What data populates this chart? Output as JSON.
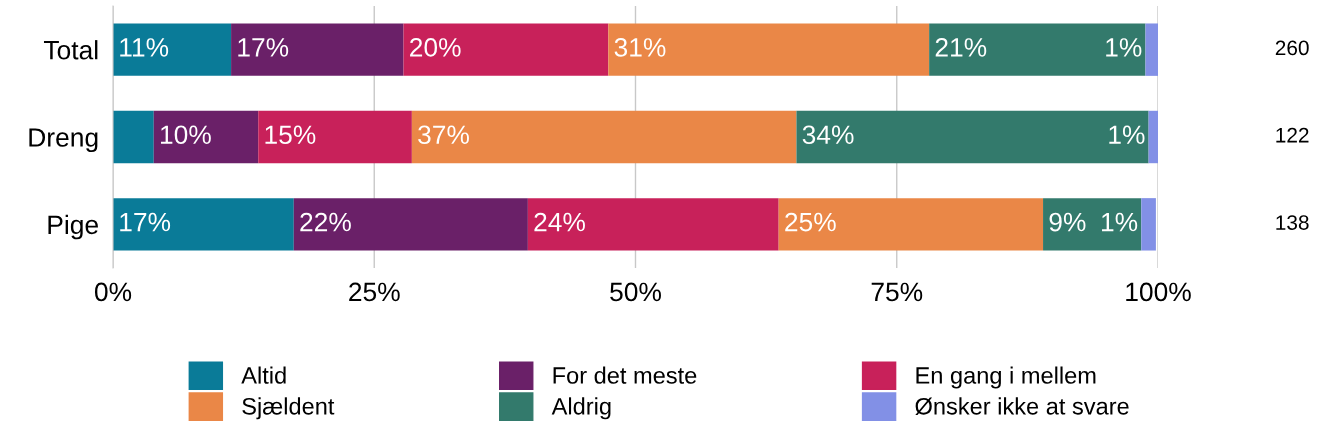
{
  "chart_data": {
    "type": "bar",
    "orientation": "horizontal",
    "stacked": true,
    "categories": [
      "Total",
      "Dreng",
      "Pige"
    ],
    "series": [
      {
        "name": "Altid",
        "color": "#0a7b98",
        "values": [
          11.3,
          3.9,
          17.3
        ],
        "value_labels": [
          "11%",
          null,
          "17%"
        ]
      },
      {
        "name": "For det meste",
        "color": "#6a2068",
        "values": [
          16.5,
          10.0,
          22.4
        ],
        "value_labels": [
          "17%",
          "10%",
          "22%"
        ]
      },
      {
        "name": "En gang i mellem",
        "color": "#c8215a",
        "values": [
          19.6,
          14.7,
          24.0
        ],
        "value_labels": [
          "20%",
          "15%",
          "24%"
        ]
      },
      {
        "name": "Sjældent",
        "color": "#ea8747",
        "values": [
          30.7,
          36.8,
          25.3
        ],
        "value_labels": [
          "31%",
          "37%",
          "25%"
        ]
      },
      {
        "name": "Aldrig",
        "color": "#337a6c",
        "values": [
          20.7,
          33.7,
          9.4
        ],
        "value_labels": [
          "21%",
          "34%",
          "9%"
        ]
      },
      {
        "name": "Ønsker ikke at svare",
        "color": "#8290e6",
        "values": [
          1.2,
          0.9,
          1.4
        ],
        "value_labels": [
          "1%",
          "1%",
          "1%"
        ]
      }
    ],
    "xlim": [
      0,
      100
    ],
    "xticks": [
      {
        "value": 0,
        "label": "0%"
      },
      {
        "value": 25,
        "label": "25%"
      },
      {
        "value": 50,
        "label": "50%"
      },
      {
        "value": 75,
        "label": "75%"
      },
      {
        "value": 100,
        "label": "100%"
      }
    ],
    "grid": "x",
    "legend": "bottom",
    "annotations": [
      "260",
      "122",
      "138"
    ]
  }
}
